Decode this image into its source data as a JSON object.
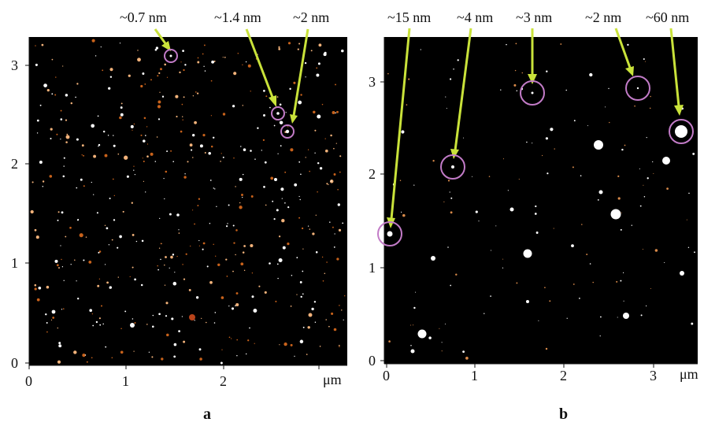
{
  "colors": {
    "background": "#000000",
    "particle_core": "#ffffff",
    "particle_halo": "#c8621b",
    "arrow": "#c9e23a",
    "circle": "#c27bc7"
  },
  "panels": [
    {
      "id": "a",
      "caption": "a",
      "unit": "μm",
      "x_ticks": [
        "0",
        "1",
        "2"
      ],
      "y_ticks": [
        "0",
        "1",
        "2",
        "3"
      ],
      "annotations": [
        "~0.7 nm",
        "~1.4 nm",
        "~2 nm"
      ]
    },
    {
      "id": "b",
      "caption": "b",
      "unit": "μm",
      "x_ticks": [
        "0",
        "1",
        "2",
        "3"
      ],
      "y_ticks": [
        "0",
        "1",
        "2",
        "3"
      ],
      "annotations": [
        "~15 nm",
        "~4 nm",
        "~3 nm",
        "~2 nm",
        "~60 nm"
      ]
    }
  ]
}
